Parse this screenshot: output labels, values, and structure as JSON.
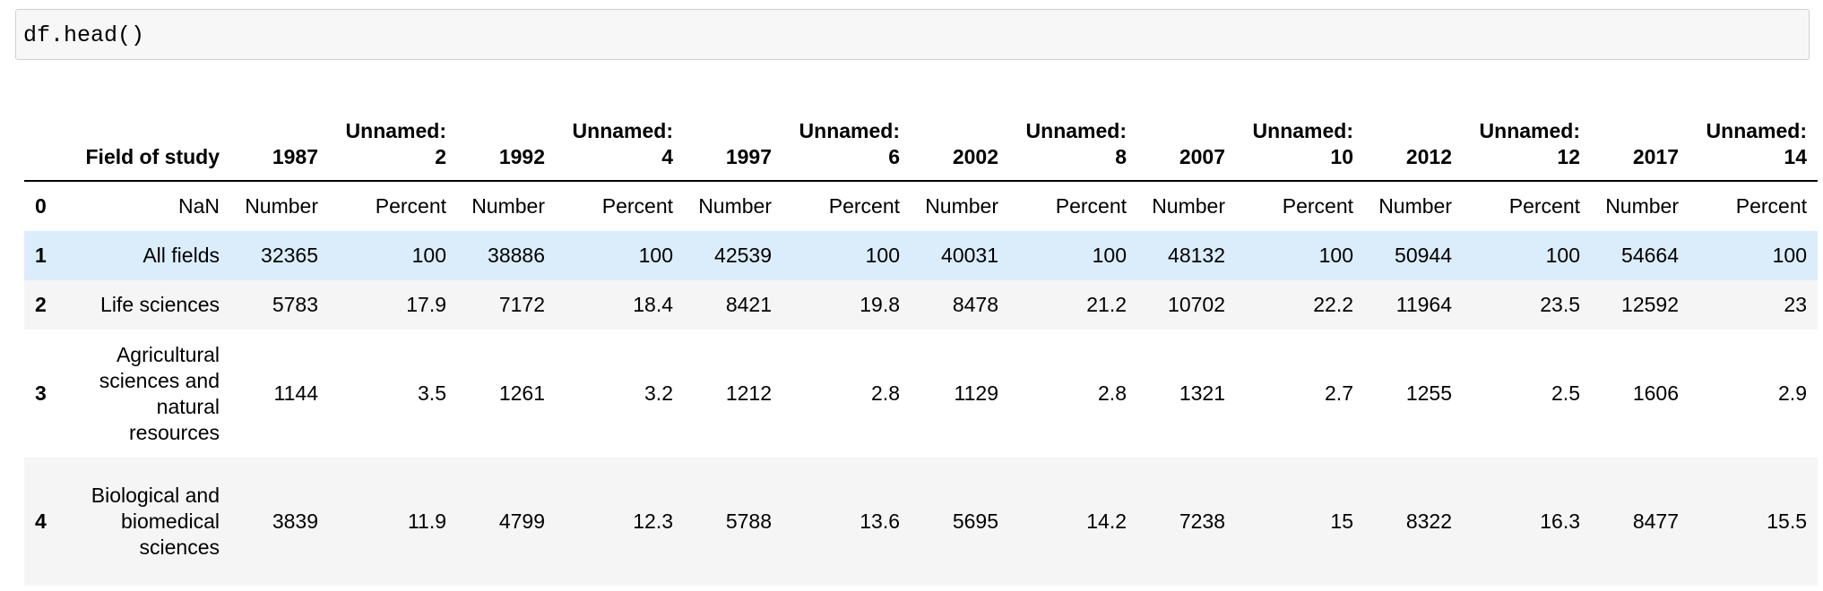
{
  "cell": {
    "code": "df.head()"
  },
  "table": {
    "columns": [
      "Field of study",
      "1987",
      "Unnamed: 2",
      "1992",
      "Unnamed: 4",
      "1997",
      "Unnamed: 6",
      "2002",
      "Unnamed: 8",
      "2007",
      "Unnamed: 10",
      "2012",
      "Unnamed: 12",
      "2017",
      "Unnamed: 14"
    ],
    "rows": [
      {
        "index": "0",
        "cells": [
          "NaN",
          "Number",
          "Percent",
          "Number",
          "Percent",
          "Number",
          "Percent",
          "Number",
          "Percent",
          "Number",
          "Percent",
          "Number",
          "Percent",
          "Number",
          "Percent"
        ]
      },
      {
        "index": "1",
        "cells": [
          "All fields",
          "32365",
          "100",
          "38886",
          "100",
          "42539",
          "100",
          "40031",
          "100",
          "48132",
          "100",
          "50944",
          "100",
          "54664",
          "100"
        ]
      },
      {
        "index": "2",
        "cells": [
          "Life sciences",
          "5783",
          "17.9",
          "7172",
          "18.4",
          "8421",
          "19.8",
          "8478",
          "21.2",
          "10702",
          "22.2",
          "11964",
          "23.5",
          "12592",
          "23"
        ]
      },
      {
        "index": "3",
        "cells": [
          "Agricultural sciences and natural resources",
          "1144",
          "3.5",
          "1261",
          "3.2",
          "1212",
          "2.8",
          "1129",
          "2.8",
          "1321",
          "2.7",
          "1255",
          "2.5",
          "1606",
          "2.9"
        ]
      },
      {
        "index": "4",
        "cells": [
          "Biological and biomedical sciences",
          "3839",
          "11.9",
          "4799",
          "12.3",
          "5788",
          "13.6",
          "5695",
          "14.2",
          "7238",
          "15",
          "8322",
          "16.3",
          "8477",
          "15.5"
        ]
      }
    ],
    "highlight_color": "#dbedfb",
    "stripe_color": "#f5f5f5"
  }
}
